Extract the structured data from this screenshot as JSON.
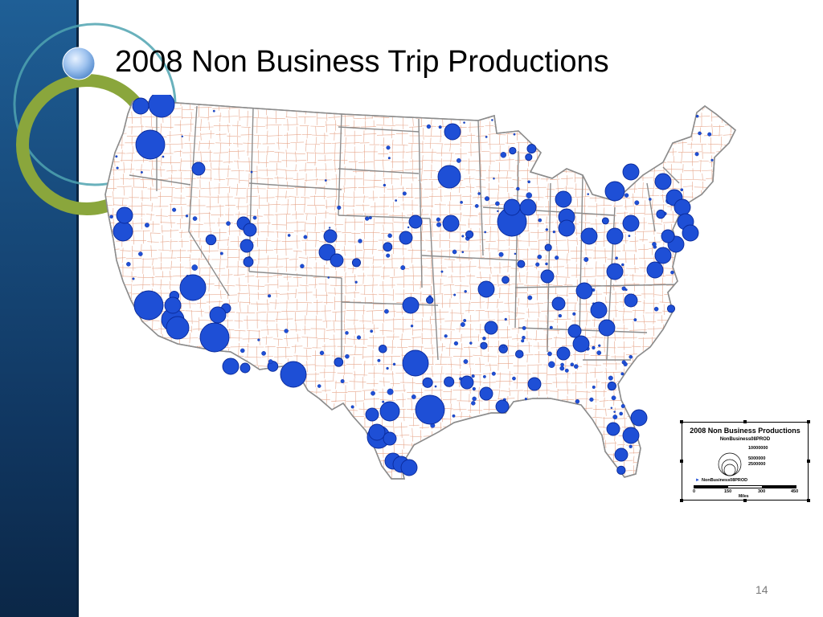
{
  "slide": {
    "title": "2008 Non Business Trip Productions",
    "page_number": "14"
  },
  "colors": {
    "symbol_fill": "#1e4fd6",
    "symbol_stroke": "#0a2a9a",
    "county_lines": "#e7a78c",
    "state_lines": "#8c8c8c",
    "sidebar": "#174a7b",
    "accent_green": "#8aa63c"
  },
  "legend": {
    "title": "2008 Non Business Productions",
    "field_name": "NonBusiness08PROD",
    "size_classes": [
      "10000000",
      "5000000",
      "2500000"
    ],
    "layer_label": "NonBusiness08PROD",
    "scale_ticks": [
      "0",
      "150",
      "300",
      "450"
    ],
    "scale_unit": "Miles"
  }
}
